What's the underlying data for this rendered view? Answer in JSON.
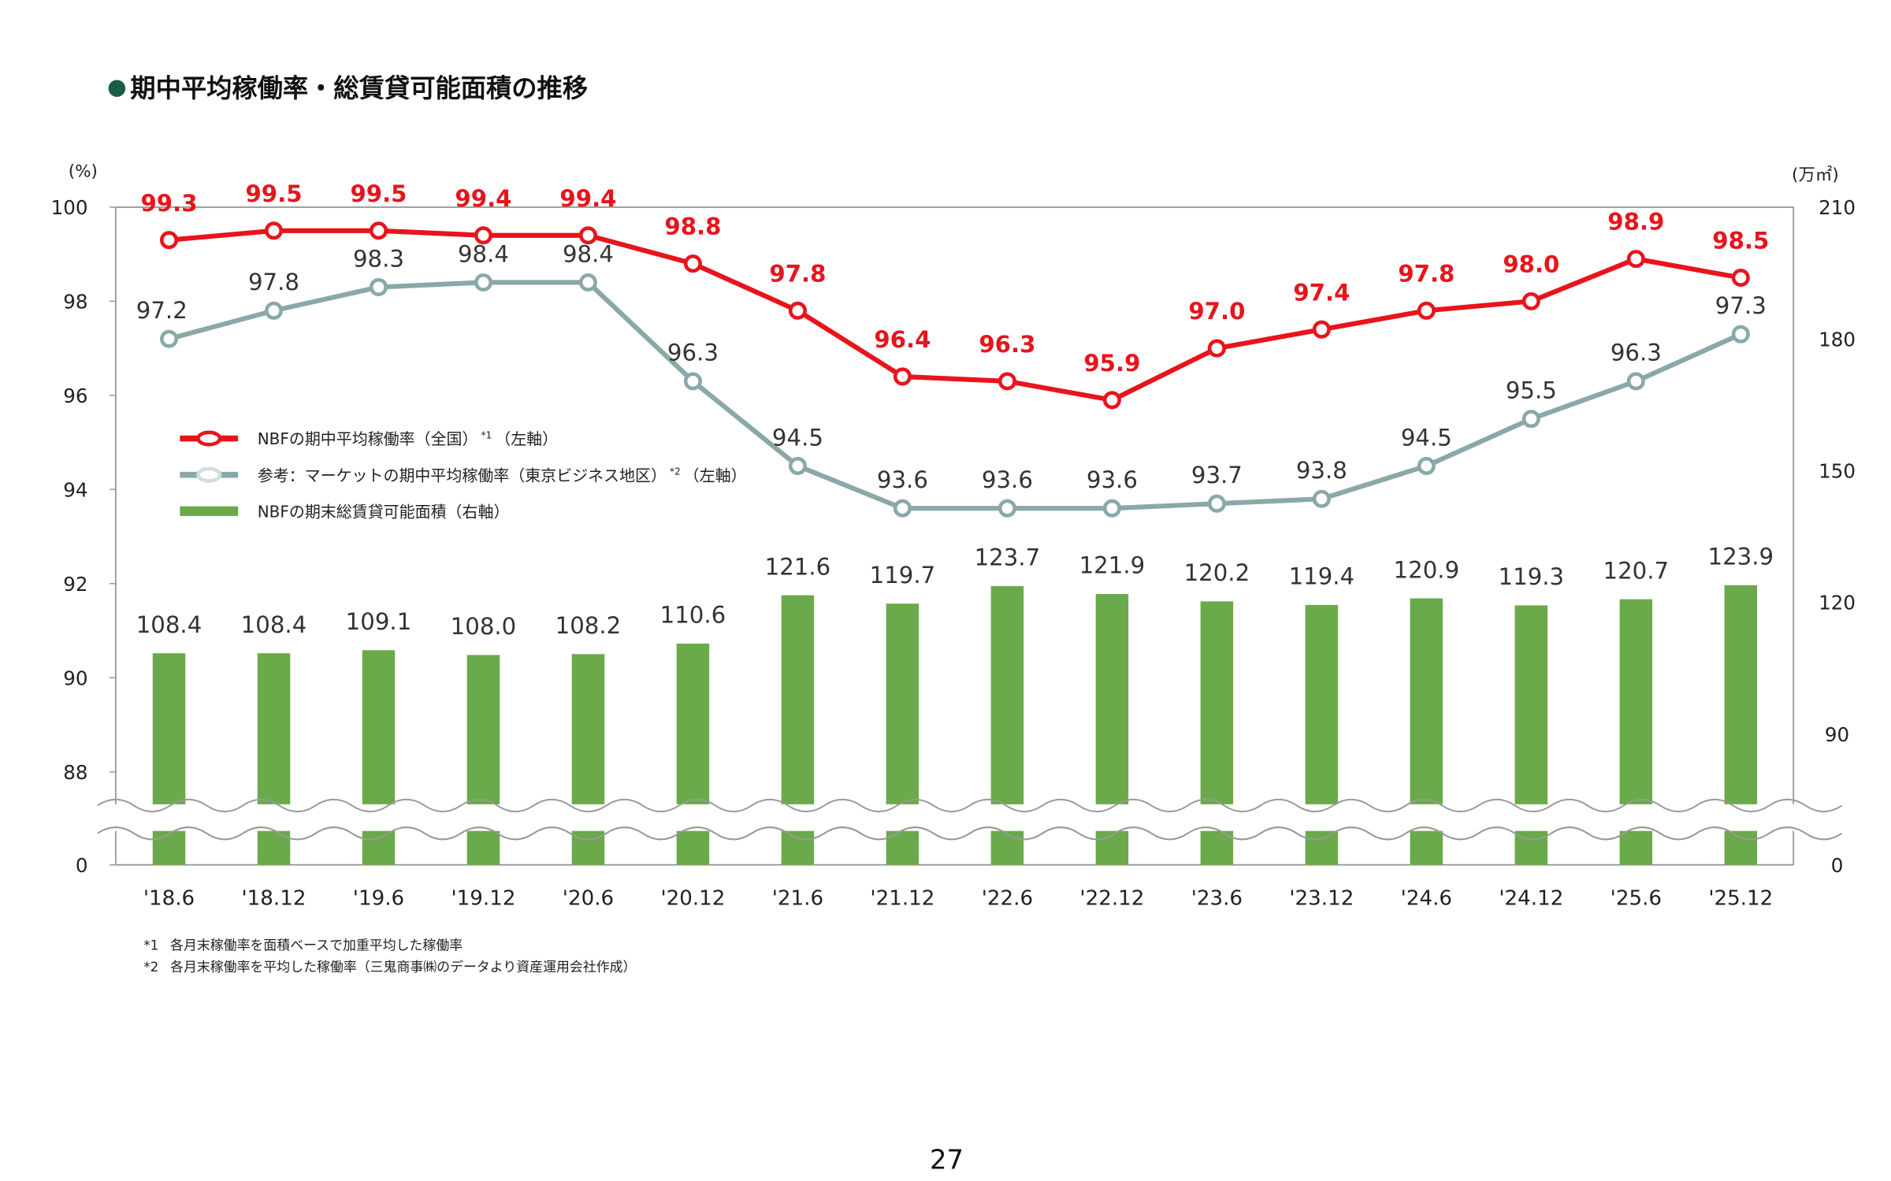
{
  "title": "期中平均稼働率・総賃貸可能面積の推移",
  "page_number": "27",
  "colors": {
    "nbf": "#e8141c",
    "market": "#8aa8a8",
    "area": "#6aaa4a",
    "bullet": "#1a5c45"
  },
  "chart_data": {
    "type": "bar+line",
    "categories": [
      "'18.6",
      "'18.12",
      "'19.6",
      "'19.12",
      "'20.6",
      "'20.12",
      "'21.6",
      "'21.12",
      "'22.6",
      "'22.12",
      "'23.6",
      "'23.12",
      "'24.6",
      "'24.12",
      "'25.6",
      "'25.12"
    ],
    "series": [
      {
        "name": "NBFの期中平均稼働率（全国）*1（左軸）",
        "legend_main": "NBFの期中平均稼働率（全国）",
        "legend_sup": "*1",
        "legend_axis": "（左軸）",
        "type": "line",
        "axis": "left",
        "values": [
          99.3,
          99.5,
          99.5,
          99.4,
          99.4,
          98.8,
          97.8,
          96.4,
          96.3,
          95.9,
          97.0,
          97.4,
          97.8,
          98.0,
          98.9,
          98.5
        ]
      },
      {
        "name": "参考：マーケットの期中平均稼働率（東京ビジネス地区）*2（左軸）",
        "legend_main": "参考：マーケットの期中平均稼働率（東京ビジネス地区）",
        "legend_sup": "*2",
        "legend_axis": "（左軸）",
        "type": "line",
        "axis": "left",
        "values": [
          97.2,
          97.8,
          98.3,
          98.4,
          98.4,
          96.3,
          94.5,
          93.6,
          93.6,
          93.6,
          93.7,
          93.8,
          94.5,
          95.5,
          96.3,
          97.3
        ]
      },
      {
        "name": "NBFの期末総賃貸可能面積（右軸）",
        "legend_main": "NBFの期末総賃貸可能面積（右軸）",
        "type": "bar",
        "axis": "right",
        "values": [
          108.4,
          108.4,
          109.1,
          108.0,
          108.2,
          110.6,
          121.6,
          119.7,
          123.7,
          121.9,
          120.2,
          119.4,
          120.9,
          119.3,
          120.7,
          123.9
        ]
      }
    ],
    "left_axis": {
      "label": "(%)",
      "ticks": [
        "100",
        "98",
        "96",
        "94",
        "92",
        "90",
        "88",
        "0"
      ],
      "range": [
        88,
        100
      ],
      "broken": true
    },
    "right_axis": {
      "label": "(万㎡)",
      "ticks": [
        "210",
        "180",
        "150",
        "120",
        "90",
        "0"
      ],
      "range": [
        0,
        210
      ],
      "broken": true
    },
    "legend_position": "upper-left inside plot"
  },
  "footnotes": [
    {
      "mark": "*1",
      "text": "各月末稼働率を面積ベースで加重平均した稼働率"
    },
    {
      "mark": "*2",
      "text": "各月末稼働率を平均した稼働率（三鬼商事㈱のデータより資産運用会社作成）"
    }
  ]
}
